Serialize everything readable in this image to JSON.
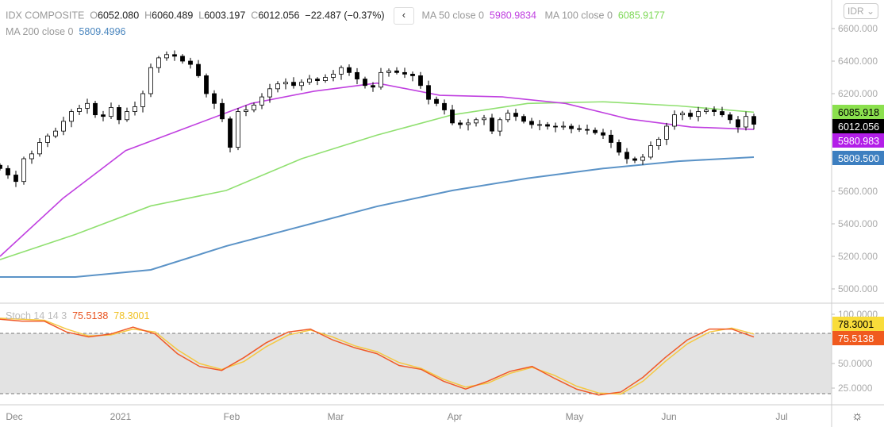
{
  "header": {
    "symbol": "IDX COMPOSITE",
    "o_label": "O",
    "open": "6052.080",
    "h_label": "H",
    "high": "6060.489",
    "l_label": "L",
    "low": "6003.197",
    "c_label": "C",
    "close": "6012.056",
    "change": "−22.487 (−0.37%)",
    "collapse_icon": "‹",
    "ma50_label": "MA 50 close 0",
    "ma50_value": "5980.9834",
    "ma100_label": "MA 100 close 0",
    "ma100_value": "6085.9177",
    "ma200_label": "MA 200 close 0",
    "ma200_value": "5809.4996"
  },
  "stoch": {
    "label": "Stoch 14 14 3",
    "k_value": "75.5138",
    "d_value": "78.3001"
  },
  "currency": "IDR ⌄",
  "settings_icon": "☼",
  "colors": {
    "ma50": "#c040e0",
    "ma100": "#90e070",
    "ma200": "#5b93c7",
    "k": "#f05a28",
    "d": "#f5c842"
  },
  "chart_data": {
    "type": "candlestick",
    "price_ticks": [
      "6600.000",
      "6400.000",
      "6200.000",
      "5600.000",
      "5400.000",
      "5200.000",
      "5000.000"
    ],
    "price_range": [
      5000,
      6600
    ],
    "stoch_ticks": [
      "100.0000",
      "50.0000",
      "25.0000"
    ],
    "stoch_bands": [
      20,
      80
    ],
    "time_labels": [
      "Dec",
      "2021",
      "Feb",
      "Mar",
      "Apr",
      "May",
      "Jun",
      "Jul"
    ],
    "last_labels": [
      {
        "text": "6085.918",
        "color": "#8be04e",
        "fg": "#000"
      },
      {
        "text": "6012.056",
        "color": "#000",
        "fg": "#fff"
      },
      {
        "text": "5980.983",
        "color": "#b31ee8",
        "fg": "#fff"
      },
      {
        "text": "5809.500",
        "color": "#3d7fc0",
        "fg": "#fff"
      }
    ],
    "stoch_last_labels": [
      {
        "text": "78.3001",
        "color": "#f9dc3a",
        "fg": "#000"
      },
      {
        "text": "75.5138",
        "color": "#f05a1e",
        "fg": "#fff"
      }
    ],
    "closes": [
      5740,
      5700,
      5660,
      5800,
      5830,
      5900,
      5940,
      5970,
      6030,
      6090,
      6110,
      6140,
      6070,
      6060,
      6115,
      6040,
      6090,
      6120,
      6200,
      6360,
      6420,
      6440,
      6430,
      6400,
      6380,
      6310,
      6200,
      6140,
      6045,
      5870,
      6090,
      6100,
      6130,
      6180,
      6230,
      6260,
      6270,
      6250,
      6270,
      6290,
      6280,
      6300,
      6320,
      6360,
      6330,
      6290,
      6250,
      6240,
      6330,
      6340,
      6330,
      6320,
      6310,
      6250,
      6165,
      6140,
      6100,
      6020,
      6010,
      6020,
      6040,
      6050,
      5970,
      6040,
      6080,
      6060,
      6030,
      6010,
      6010,
      6000,
      5995,
      6000,
      5985,
      5980,
      5975,
      5960,
      5945,
      5900,
      5840,
      5800,
      5790,
      5810,
      5880,
      5920,
      6000,
      6070,
      6080,
      6060,
      6090,
      6100,
      6090,
      6070,
      6040,
      5995,
      6060,
      6012
    ],
    "ma50": [
      5200,
      5556,
      5850,
      5995,
      6140,
      6215,
      6265,
      6190,
      6180,
      6140,
      6045,
      5995,
      5980
    ],
    "ma100": [
      5180,
      5335,
      5510,
      5605,
      5800,
      5945,
      6070,
      6140,
      6150,
      6125,
      6086
    ],
    "ma200": [
      5073,
      5073,
      5117,
      5263,
      5385,
      5507,
      5605,
      5680,
      5740,
      5785,
      5810
    ],
    "stoch_k": [
      95,
      93,
      93,
      82,
      77,
      80,
      87,
      80,
      60,
      47,
      43,
      56,
      71,
      82,
      85,
      74,
      66,
      60,
      48,
      44,
      32,
      24,
      32,
      42,
      47,
      35,
      24,
      18,
      21,
      36,
      56,
      74,
      85,
      85,
      77
    ],
    "stoch_d": [
      96,
      95,
      94,
      85,
      78,
      79,
      85,
      82,
      64,
      50,
      44,
      52,
      67,
      79,
      84,
      77,
      68,
      62,
      51,
      45,
      34,
      26,
      30,
      40,
      46,
      38,
      27,
      20,
      19,
      32,
      52,
      70,
      82,
      86,
      80
    ]
  }
}
